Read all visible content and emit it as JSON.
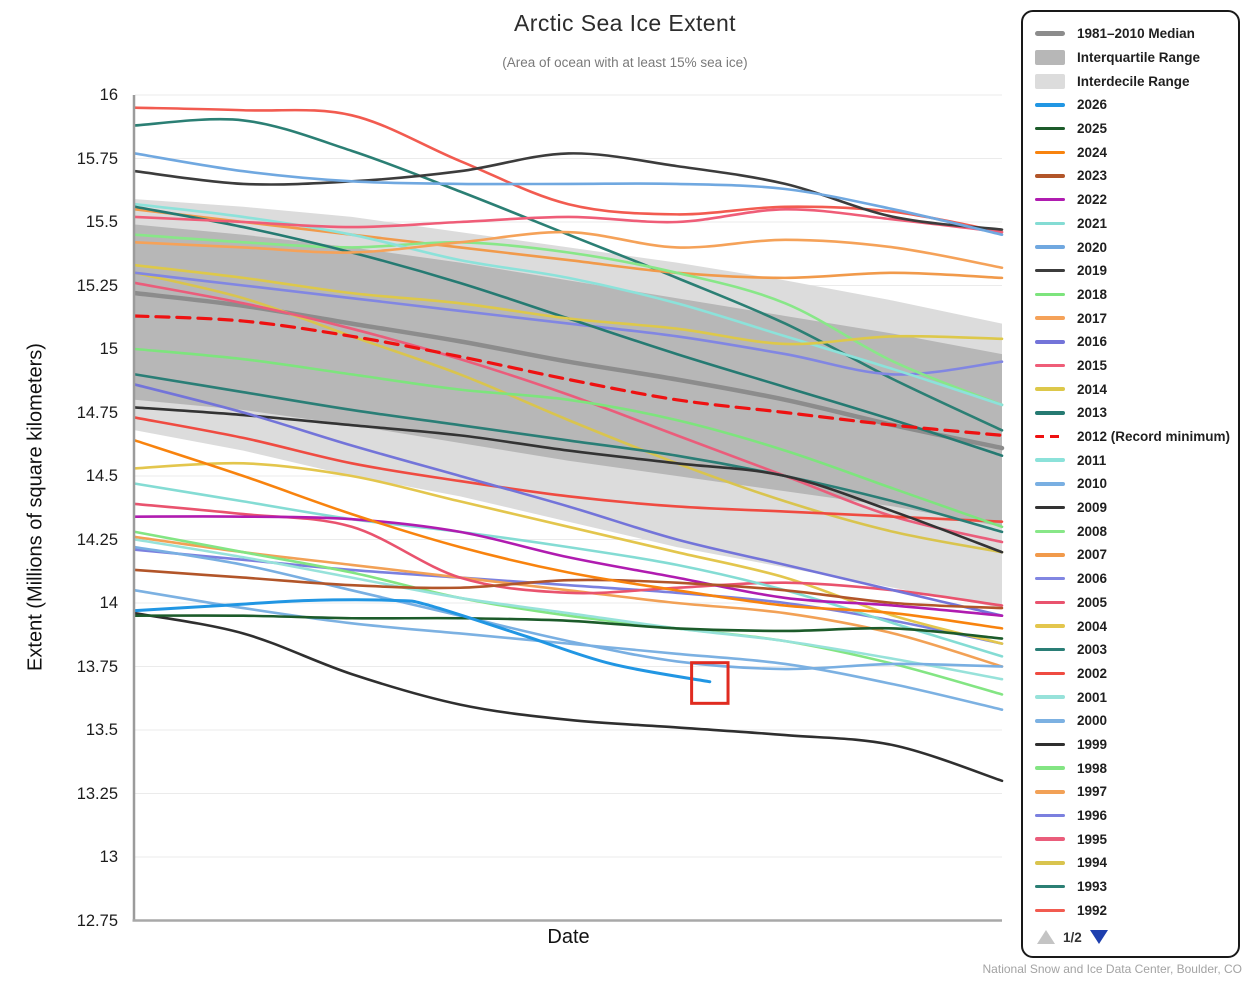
{
  "title": "Arctic Sea Ice Extent",
  "subtitle": "(Area of ocean with at least 15% sea ice)",
  "footer": "National Snow and Ice Data Center, Boulder, CO",
  "y_axis": {
    "label": "Extent (Millions of square kilometers)",
    "tick_labels": [
      "16",
      "15.75",
      "15.5",
      "15.25",
      "15",
      "14.75",
      "14.5",
      "14.25",
      "14",
      "13.75",
      "13.5",
      "13.25",
      "13",
      "12.75"
    ],
    "tick_values": [
      16,
      15.75,
      15.5,
      15.25,
      15,
      14.75,
      14.5,
      14.25,
      14,
      13.75,
      13.5,
      13.25,
      13,
      12.75
    ]
  },
  "x_axis": {
    "label": "Date"
  },
  "legend": {
    "stat_items": [
      {
        "label": "1981–2010 Median",
        "swatch": "line-thick",
        "color": "#8c8c8c"
      },
      {
        "label": "Interquartile Range",
        "swatch": "box",
        "color": "#b7b7b7"
      },
      {
        "label": "Interdecile Range",
        "swatch": "box",
        "color": "#dcdcdc"
      }
    ],
    "pagination": {
      "label": "1/2",
      "up_symbol": "▲",
      "down_symbol": "▼",
      "up_color": "#c4c4c4",
      "down_color": "#1e3fae"
    }
  },
  "chart_data": {
    "type": "line",
    "title": "Arctic Sea Ice Extent",
    "subtitle": "(Area of ocean with at least 15% sea ice)",
    "xlabel": "Date",
    "ylabel": "Extent (Millions of square kilometers)",
    "ylim": [
      12.75,
      16
    ],
    "grid": "horizontal-only",
    "legend_position": "right",
    "x_fracs_default": [
      0,
      0.125,
      0.25,
      0.375,
      0.5,
      0.625,
      0.75,
      0.875,
      1
    ],
    "bands": [
      {
        "name": "Interdecile Range",
        "color": "#dcdcdc",
        "top": [
          15.59,
          15.56,
          15.52,
          15.46,
          15.4,
          15.34,
          15.27,
          15.19,
          15.1
        ],
        "bottom": [
          14.68,
          14.6,
          14.5,
          14.42,
          14.32,
          14.22,
          14.14,
          14.06,
          13.98
        ]
      },
      {
        "name": "Interquartile Range",
        "color": "#b7b7b7",
        "top": [
          15.49,
          15.45,
          15.4,
          15.34,
          15.27,
          15.2,
          15.13,
          15.06,
          14.98
        ],
        "bottom": [
          14.8,
          14.76,
          14.7,
          14.63,
          14.56,
          14.5,
          14.44,
          14.38,
          14.3
        ]
      }
    ],
    "median": {
      "name": "1981–2010 Median",
      "color": "#8c8c8c",
      "width": 4.5,
      "values": [
        15.22,
        15.17,
        15.1,
        15.03,
        14.95,
        14.88,
        14.8,
        14.7,
        14.61
      ]
    },
    "series": [
      {
        "id": "2026",
        "name": "2026",
        "color": "#2196e3",
        "width": 3,
        "x_fracs": [
          0,
          0.1,
          0.2,
          0.3,
          0.34,
          0.45,
          0.55,
          0.663
        ],
        "values": [
          13.97,
          13.99,
          14.01,
          14.01,
          13.99,
          13.87,
          13.76,
          13.69
        ]
      },
      {
        "id": "2025",
        "name": "2025",
        "color": "#1c5b2a",
        "values": [
          13.95,
          13.95,
          13.94,
          13.94,
          13.93,
          13.9,
          13.89,
          13.9,
          13.86
        ]
      },
      {
        "id": "2024",
        "name": "2024",
        "color": "#f8830e",
        "values": [
          14.64,
          14.5,
          14.35,
          14.22,
          14.12,
          14.05,
          13.99,
          13.96,
          13.9
        ]
      },
      {
        "id": "2023",
        "name": "2023",
        "color": "#b25529",
        "values": [
          14.13,
          14.1,
          14.07,
          14.06,
          14.09,
          14.08,
          14.05,
          14.0,
          13.98
        ]
      },
      {
        "id": "2022",
        "name": "2022",
        "color": "#b01cb0",
        "values": [
          14.34,
          14.34,
          14.33,
          14.28,
          14.18,
          14.1,
          14.02,
          13.99,
          13.95
        ]
      },
      {
        "id": "2021",
        "name": "2021",
        "color": "#84dcd4",
        "values": [
          14.47,
          14.4,
          14.33,
          14.28,
          14.22,
          14.15,
          14.05,
          13.92,
          13.79
        ]
      },
      {
        "id": "2020",
        "name": "2020",
        "color": "#70a8e0",
        "values": [
          15.77,
          15.7,
          15.66,
          15.65,
          15.65,
          15.65,
          15.63,
          15.55,
          15.45
        ]
      },
      {
        "id": "2019",
        "name": "2019",
        "color": "#3c3c3c",
        "values": [
          15.7,
          15.65,
          15.66,
          15.7,
          15.77,
          15.72,
          15.65,
          15.52,
          15.47
        ]
      },
      {
        "id": "2018",
        "name": "2018",
        "color": "#7de47d",
        "values": [
          15.0,
          14.96,
          14.9,
          14.84,
          14.8,
          14.72,
          14.6,
          14.45,
          14.3
        ]
      },
      {
        "id": "2017",
        "name": "2017",
        "color": "#f5a259",
        "values": [
          15.42,
          15.4,
          15.38,
          15.42,
          15.46,
          15.4,
          15.43,
          15.4,
          15.32
        ]
      },
      {
        "id": "2016",
        "name": "2016",
        "color": "#7374d9",
        "values": [
          14.86,
          14.75,
          14.62,
          14.5,
          14.38,
          14.25,
          14.15,
          14.05,
          13.95
        ]
      },
      {
        "id": "2015",
        "name": "2015",
        "color": "#ef5d78",
        "values": [
          15.52,
          15.5,
          15.48,
          15.5,
          15.52,
          15.5,
          15.55,
          15.51,
          15.46
        ]
      },
      {
        "id": "2014",
        "name": "2014",
        "color": "#ddc84a",
        "values": [
          15.33,
          15.28,
          15.22,
          15.18,
          15.12,
          15.08,
          15.02,
          15.05,
          15.04
        ]
      },
      {
        "id": "2013",
        "name": "2013",
        "color": "#257a72",
        "values": [
          15.56,
          15.48,
          15.38,
          15.26,
          15.12,
          14.98,
          14.85,
          14.72,
          14.58
        ]
      },
      {
        "id": "2012",
        "name": "2012 (Record minimum)",
        "color": "#ee1111",
        "dashed": true,
        "width": 3.2,
        "values": [
          15.13,
          15.11,
          15.05,
          14.97,
          14.88,
          14.8,
          14.75,
          14.7,
          14.66
        ]
      },
      {
        "id": "2011",
        "name": "2011",
        "color": "#8ce2da",
        "values": [
          15.57,
          15.52,
          15.45,
          15.35,
          15.28,
          15.18,
          15.05,
          14.92,
          14.78
        ]
      },
      {
        "id": "2010",
        "name": "2010",
        "color": "#79afe2",
        "values": [
          14.22,
          14.15,
          14.05,
          13.95,
          13.85,
          13.77,
          13.74,
          13.76,
          13.75
        ]
      },
      {
        "id": "2009",
        "name": "2009",
        "color": "#333333",
        "values": [
          14.77,
          14.74,
          14.7,
          14.66,
          14.6,
          14.55,
          14.5,
          14.36,
          14.2
        ]
      },
      {
        "id": "2008",
        "name": "2008",
        "color": "#88e788",
        "values": [
          15.45,
          15.42,
          15.4,
          15.42,
          15.38,
          15.3,
          15.18,
          14.95,
          14.78
        ]
      },
      {
        "id": "2007",
        "name": "2007",
        "color": "#f19a4b",
        "values": [
          15.55,
          15.5,
          15.45,
          15.4,
          15.35,
          15.3,
          15.28,
          15.3,
          15.28
        ]
      },
      {
        "id": "2006",
        "name": "2006",
        "color": "#8186e2",
        "values": [
          15.3,
          15.25,
          15.2,
          15.15,
          15.1,
          15.05,
          14.98,
          14.9,
          14.95
        ]
      },
      {
        "id": "2005",
        "name": "2005",
        "color": "#e9536e",
        "values": [
          14.39,
          14.35,
          14.3,
          14.1,
          14.04,
          14.06,
          14.08,
          14.05,
          13.99
        ]
      },
      {
        "id": "2004",
        "name": "2004",
        "color": "#e3c64d",
        "values": [
          14.53,
          14.55,
          14.5,
          14.4,
          14.3,
          14.2,
          14.1,
          13.95,
          13.84
        ]
      },
      {
        "id": "2003",
        "name": "2003",
        "color": "#2a7e76",
        "values": [
          14.9,
          14.83,
          14.76,
          14.7,
          14.64,
          14.58,
          14.5,
          14.4,
          14.28
        ]
      },
      {
        "id": "2002",
        "name": "2002",
        "color": "#ef4b41",
        "values": [
          14.73,
          14.65,
          14.55,
          14.48,
          14.42,
          14.38,
          14.36,
          14.34,
          14.32
        ]
      },
      {
        "id": "2001",
        "name": "2001",
        "color": "#97e2da",
        "values": [
          14.25,
          14.18,
          14.1,
          14.02,
          13.96,
          13.9,
          13.85,
          13.78,
          13.7
        ]
      },
      {
        "id": "2000",
        "name": "2000",
        "color": "#7cb1e2",
        "values": [
          14.05,
          13.98,
          13.92,
          13.88,
          13.84,
          13.8,
          13.76,
          13.68,
          13.58
        ]
      },
      {
        "id": "1999",
        "name": "1999",
        "color": "#2f2f2f",
        "values": [
          13.96,
          13.88,
          13.72,
          13.6,
          13.54,
          13.51,
          13.48,
          13.44,
          13.3
        ]
      },
      {
        "id": "1998",
        "name": "1998",
        "color": "#83e583",
        "values": [
          14.28,
          14.2,
          14.12,
          14.02,
          13.95,
          13.9,
          13.85,
          13.76,
          13.64
        ]
      },
      {
        "id": "1997",
        "name": "1997",
        "color": "#f2a156",
        "values": [
          14.26,
          14.2,
          14.15,
          14.1,
          14.05,
          14.0,
          13.96,
          13.88,
          13.75
        ]
      },
      {
        "id": "1996",
        "name": "1996",
        "color": "#7b80df",
        "values": [
          14.21,
          14.17,
          14.13,
          14.1,
          14.07,
          14.04,
          14.0,
          13.93,
          13.84
        ]
      },
      {
        "id": "1995",
        "name": "1995",
        "color": "#ea5d7b",
        "values": [
          15.26,
          15.18,
          15.08,
          14.96,
          14.82,
          14.66,
          14.5,
          14.34,
          14.24
        ]
      },
      {
        "id": "1994",
        "name": "1994",
        "color": "#d9c44e",
        "values": [
          15.3,
          15.2,
          15.05,
          14.9,
          14.72,
          14.55,
          14.4,
          14.28,
          14.2
        ]
      },
      {
        "id": "1993",
        "name": "1993",
        "color": "#2b7f74",
        "values": [
          15.88,
          15.9,
          15.78,
          15.62,
          15.45,
          15.28,
          15.1,
          14.88,
          14.68
        ]
      },
      {
        "id": "1992",
        "name": "1992",
        "color": "#f25b50",
        "values": [
          15.95,
          15.94,
          15.92,
          15.74,
          15.57,
          15.53,
          15.56,
          15.54,
          15.46
        ]
      }
    ],
    "annotation_box": {
      "x0_frac": 0.642,
      "x1_frac": 0.684,
      "v0": 13.605,
      "v1": 13.765,
      "color": "#e02b20"
    }
  }
}
